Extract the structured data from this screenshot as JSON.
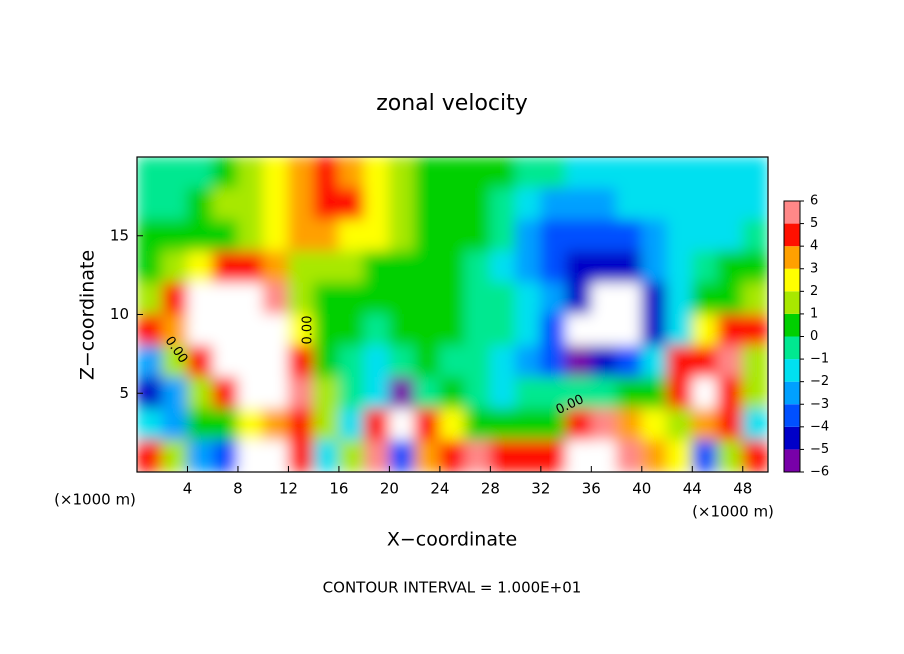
{
  "chart_data": {
    "type": "heatmap",
    "title": "zonal velocity",
    "xlabel": "X−coordinate",
    "ylabel": "Z−coordinate",
    "x_unit": "(×1000 m)",
    "y_unit": "(×1000 m)",
    "annotation": "CONTOUR INTERVAL = 1.000E+01",
    "contour_labels": [
      "0.00",
      "0.00",
      "0.00"
    ],
    "xlim": [
      0,
      50
    ],
    "ylim": [
      0,
      20
    ],
    "xticks": [
      4,
      8,
      12,
      16,
      20,
      24,
      28,
      32,
      36,
      40,
      44,
      48
    ],
    "yticks": [
      5,
      10,
      15
    ],
    "x": [
      1,
      3,
      5,
      7,
      9,
      11,
      13,
      15,
      17,
      19,
      21,
      23,
      25,
      27,
      29,
      31,
      33,
      35,
      37,
      39,
      41,
      43,
      45,
      47,
      49
    ],
    "y": [
      19,
      17,
      15,
      13,
      11,
      9,
      7,
      5,
      3,
      1
    ],
    "z": [
      [
        -1,
        -1,
        -0.5,
        0.5,
        1.5,
        2.5,
        3.5,
        4.5,
        3.5,
        2.5,
        1.5,
        0.5,
        0.5,
        0,
        0,
        -0.5,
        -1,
        -1.5,
        -1.5,
        -1.5,
        -1.5,
        -1.5,
        -1.5,
        -1.5,
        -1.5
      ],
      [
        -1,
        -0.5,
        0.5,
        1,
        1.5,
        2.5,
        3.5,
        4.5,
        4,
        2.5,
        1.5,
        0.5,
        0.5,
        0,
        -0.5,
        -1.5,
        -2.5,
        -3,
        -2.5,
        -2,
        -1.5,
        -1.5,
        -1.5,
        -1.5,
        -1.5
      ],
      [
        0.5,
        0.5,
        0.5,
        0.5,
        1,
        2,
        3,
        3,
        2.5,
        2,
        1,
        0.5,
        0.5,
        0,
        -1,
        -2.5,
        -3.5,
        -4,
        -4,
        -3.5,
        -3,
        -2,
        -1.5,
        -1.5,
        -1
      ],
      [
        0.5,
        1,
        2,
        4,
        4.5,
        3,
        1.5,
        1,
        1,
        0.5,
        0.5,
        0,
        0,
        -1,
        -1.5,
        -2.5,
        -3.5,
        -4.5,
        -4.5,
        -4.5,
        -3,
        -2,
        -1,
        0,
        0.5
      ],
      [
        1,
        4.5,
        8,
        8,
        8,
        5,
        1.5,
        0.5,
        0,
        0,
        0,
        0,
        0,
        -0.5,
        -1,
        -1.5,
        -3,
        -5,
        -8,
        -8,
        -5,
        -2,
        0,
        0.5,
        1
      ],
      [
        4,
        3,
        8,
        8,
        8,
        8,
        2,
        0.5,
        0,
        -0.5,
        0,
        0,
        0,
        -0.5,
        -1,
        -2,
        -4,
        -8,
        -8,
        -8,
        -5,
        -2,
        2,
        4,
        4
      ],
      [
        -3,
        1,
        4,
        8,
        8,
        8,
        4.5,
        0.5,
        -0.5,
        -2,
        -0.5,
        0,
        -0.5,
        -1,
        -2,
        -3,
        -4,
        -5.5,
        -5,
        -4,
        -2,
        4.5,
        4,
        5,
        1
      ],
      [
        -5,
        -3,
        1,
        4,
        8,
        8,
        5,
        1,
        -1,
        -2,
        -5.5,
        -1,
        0,
        -1,
        -1.5,
        -0.5,
        -1,
        -1,
        -1,
        0,
        0,
        4,
        8,
        4,
        1
      ],
      [
        -2,
        -3,
        0,
        0.5,
        2,
        3,
        4,
        1,
        -2,
        4,
        8,
        4,
        2,
        0,
        0.5,
        0,
        0.5,
        4,
        5,
        3,
        2,
        1,
        3,
        4,
        -2
      ],
      [
        4,
        1,
        -3,
        -4,
        8,
        8,
        4,
        -2,
        1,
        5,
        -4,
        3,
        4,
        5,
        4,
        4,
        4,
        8,
        8,
        5,
        3,
        2,
        -4,
        1,
        4
      ]
    ],
    "colorbar": {
      "lim": [
        -6,
        6
      ],
      "ticks": [
        {
          "value": -6,
          "label": "−6"
        },
        {
          "value": -5,
          "label": "−5"
        },
        {
          "value": -4,
          "label": "−4"
        },
        {
          "value": -3,
          "label": "−3"
        },
        {
          "value": -2,
          "label": "−2"
        },
        {
          "value": -1,
          "label": "−1"
        },
        0,
        1,
        2,
        3,
        4,
        5,
        6
      ],
      "colors": [
        "#7800a8",
        "#0000c8",
        "#0050ff",
        "#00a0ff",
        "#00e0f0",
        "#00e890",
        "#00d000",
        "#a8e800",
        "#ffff00",
        "#ffa000",
        "#ff1000",
        "#ff8888"
      ],
      "out_of_range_color": "#ffffff"
    }
  }
}
